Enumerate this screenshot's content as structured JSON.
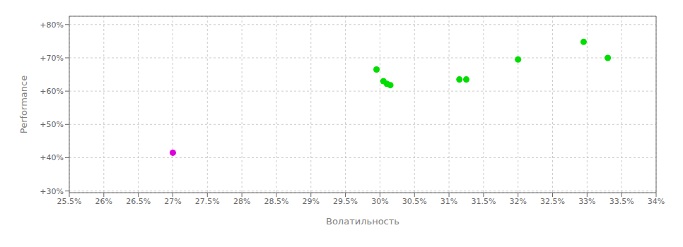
{
  "chart_data": {
    "type": "scatter",
    "xlabel": "Волатильность",
    "ylabel": "Performance",
    "xlim": [
      0.255,
      0.34
    ],
    "ylim": [
      0.295,
      0.825
    ],
    "xticks": [
      {
        "value": 0.255,
        "label": "25.5%"
      },
      {
        "value": 0.26,
        "label": "26%"
      },
      {
        "value": 0.265,
        "label": "26.5%"
      },
      {
        "value": 0.27,
        "label": "27%"
      },
      {
        "value": 0.275,
        "label": "27.5%"
      },
      {
        "value": 0.28,
        "label": "28%"
      },
      {
        "value": 0.285,
        "label": "28.5%"
      },
      {
        "value": 0.29,
        "label": "29%"
      },
      {
        "value": 0.295,
        "label": "29.5%"
      },
      {
        "value": 0.3,
        "label": "30%"
      },
      {
        "value": 0.305,
        "label": "30.5%"
      },
      {
        "value": 0.31,
        "label": "31%"
      },
      {
        "value": 0.315,
        "label": "31.5%"
      },
      {
        "value": 0.32,
        "label": "32%"
      },
      {
        "value": 0.325,
        "label": "32.5%"
      },
      {
        "value": 0.33,
        "label": "33%"
      },
      {
        "value": 0.335,
        "label": "33.5%"
      },
      {
        "value": 0.34,
        "label": "34%"
      }
    ],
    "yticks": [
      {
        "value": 0.3,
        "label": "+30%"
      },
      {
        "value": 0.4,
        "label": "+40%"
      },
      {
        "value": 0.5,
        "label": "+50%"
      },
      {
        "value": 0.6,
        "label": "+60%"
      },
      {
        "value": 0.7,
        "label": "+70%"
      },
      {
        "value": 0.8,
        "label": "+80%"
      }
    ],
    "grid": true,
    "series": [
      {
        "color": "#00dd00",
        "x": [
          0.2995,
          0.3005,
          0.301,
          0.3015,
          0.3115,
          0.3125,
          0.32,
          0.3295,
          0.333
        ],
        "values": [
          0.665,
          0.63,
          0.622,
          0.618,
          0.635,
          0.635,
          0.695,
          0.748,
          0.7
        ]
      },
      {
        "color": "#dd00dd",
        "x": [
          0.27
        ],
        "values": [
          0.415
        ]
      }
    ]
  }
}
